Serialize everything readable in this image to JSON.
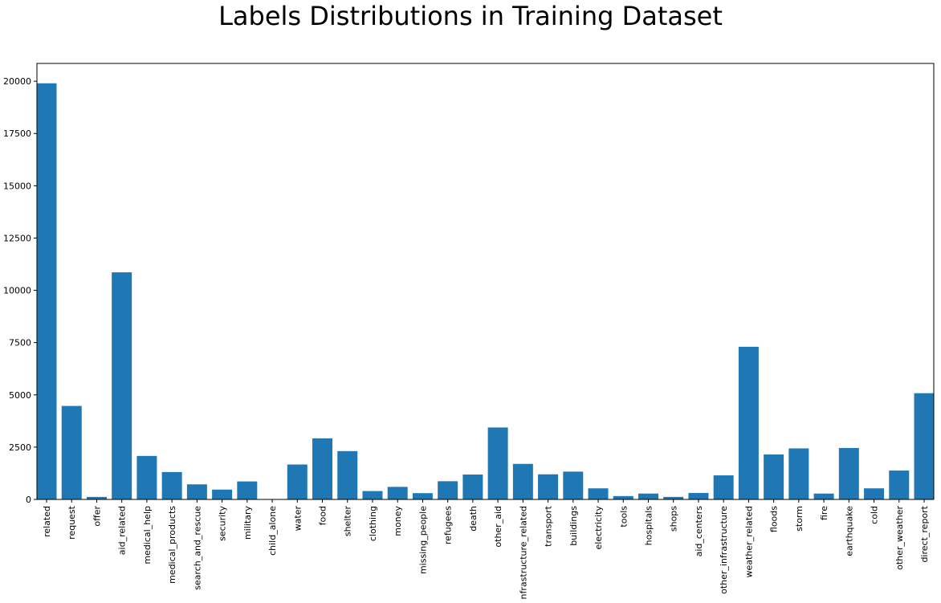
{
  "chart_data": {
    "type": "bar",
    "title": "Labels Distributions in Training Dataset",
    "xlabel": "",
    "ylabel": "",
    "ylim": [
      0,
      20850
    ],
    "yticks": [
      0,
      2500,
      5000,
      7500,
      10000,
      12500,
      15000,
      17500,
      20000
    ],
    "grid": false,
    "bar_color": "#1f77b4",
    "categories": [
      "related",
      "request",
      "offer",
      "aid_related",
      "medical_help",
      "medical_products",
      "search_and_rescue",
      "security",
      "military",
      "child_alone",
      "water",
      "food",
      "shelter",
      "clothing",
      "money",
      "missing_people",
      "refugees",
      "death",
      "other_aid",
      "infrastructure_related",
      "transport",
      "buildings",
      "electricity",
      "tools",
      "hospitals",
      "shops",
      "aid_centers",
      "other_infrastructure",
      "weather_related",
      "floods",
      "storm",
      "fire",
      "earthquake",
      "cold",
      "other_weather",
      "direct_report"
    ],
    "values": [
      19900,
      4470,
      120,
      10860,
      2080,
      1310,
      720,
      470,
      860,
      0,
      1670,
      2920,
      2310,
      400,
      600,
      300,
      870,
      1190,
      3440,
      1700,
      1200,
      1330,
      530,
      160,
      280,
      120,
      310,
      1150,
      7300,
      2150,
      2440,
      280,
      2460,
      530,
      1380,
      5080
    ]
  }
}
